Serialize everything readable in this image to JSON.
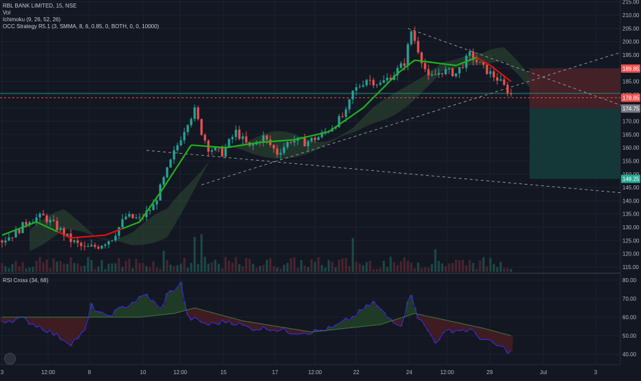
{
  "header": {
    "symbol": "RBL BANK LIMITED, 15, NSE",
    "indicators": [
      "Vol",
      "Ichimoku (9, 26, 52, 26)",
      "OCC Strategy R5.1 (3, SMMA, 8, 6, 0.85, 0, BOTH, 0, 0, 10000)"
    ]
  },
  "price_axis": {
    "ticks": [
      "215.00",
      "210.00",
      "205.00",
      "200.00",
      "195.00",
      "190.00",
      "185.00",
      "180.00",
      "175.00",
      "170.00",
      "165.00",
      "160.00",
      "155.00",
      "150.00",
      "145.00",
      "140.00",
      "135.00",
      "130.00",
      "125.00",
      "120.00",
      "115.00"
    ],
    "markers": [
      {
        "label": "189.85",
        "value": 189.85,
        "color": "#ef5350"
      },
      {
        "label": "178.85",
        "value": 178.85,
        "color": "#ef5350"
      },
      {
        "label": "174.75",
        "value": 174.75,
        "color": "#787b86"
      },
      {
        "label": "148.25",
        "value": 148.25,
        "color": "#22ab94"
      }
    ]
  },
  "time_axis": {
    "labels": [
      "3",
      "12:00",
      "8",
      "10",
      "12:00",
      "15",
      "17",
      "12:00",
      "22",
      "24",
      "12:00",
      "29",
      "Jul",
      "3"
    ]
  },
  "rsi": {
    "title": "RSI Cross (34, 68)",
    "ticks": [
      "80.00",
      "70.00",
      "60.00",
      "50.00",
      "40.00"
    ]
  },
  "colors": {
    "background": "#131722",
    "up_candle": "#26a69a",
    "down_candle": "#ef5350",
    "occ_up": "#1fb31f",
    "occ_down": "#e01010",
    "cloud": "#2e4a33",
    "trendline": "#9598a1",
    "position_loss": "#4a2128",
    "position_profit": "#143a3a",
    "rsi_purple": "#3b2bd9",
    "rsi_bull": "#1f3b26",
    "rsi_bear": "#3f1c22"
  },
  "chart_data": [
    {
      "type": "candlestick",
      "title": "RBL BANK LIMITED, 15, NSE",
      "x": [
        "3",
        "12:00",
        "8",
        "10",
        "12:00",
        "15",
        "17",
        "12:00",
        "22",
        "24",
        "12:00",
        "29"
      ],
      "ylim": [
        112,
        217
      ],
      "close_path": [
        [
          0,
          125
        ],
        [
          4,
          128
        ],
        [
          8,
          133
        ],
        [
          12,
          134
        ],
        [
          16,
          130
        ],
        [
          20,
          125
        ],
        [
          24,
          122
        ],
        [
          28,
          123
        ],
        [
          32,
          126
        ],
        [
          36,
          134
        ],
        [
          40,
          133
        ],
        [
          44,
          138
        ],
        [
          47,
          148
        ],
        [
          50,
          158
        ],
        [
          54,
          170
        ],
        [
          56,
          174
        ],
        [
          58,
          166
        ],
        [
          60,
          160
        ],
        [
          64,
          158
        ],
        [
          68,
          166
        ],
        [
          72,
          160
        ],
        [
          76,
          164
        ],
        [
          80,
          158
        ],
        [
          84,
          163
        ],
        [
          88,
          162
        ],
        [
          92,
          164
        ],
        [
          96,
          168
        ],
        [
          100,
          173
        ],
        [
          102,
          181
        ],
        [
          106,
          186
        ],
        [
          110,
          184
        ],
        [
          114,
          188
        ],
        [
          117,
          192
        ],
        [
          119,
          204
        ],
        [
          121,
          197
        ],
        [
          124,
          186
        ],
        [
          128,
          189
        ],
        [
          132,
          188
        ],
        [
          136,
          195
        ],
        [
          140,
          190
        ],
        [
          144,
          186
        ],
        [
          146,
          183
        ],
        [
          148,
          180
        ]
      ],
      "occ_path": [
        [
          0,
          127
        ],
        [
          10,
          132
        ],
        [
          20,
          126
        ],
        [
          30,
          127
        ],
        [
          40,
          132
        ],
        [
          47,
          145
        ],
        [
          55,
          161
        ],
        [
          65,
          160
        ],
        [
          75,
          162
        ],
        [
          85,
          163
        ],
        [
          95,
          166
        ],
        [
          105,
          175
        ],
        [
          115,
          188
        ],
        [
          120,
          193
        ],
        [
          126,
          192
        ],
        [
          132,
          191
        ],
        [
          138,
          194
        ],
        [
          142,
          191
        ],
        [
          148,
          185
        ]
      ],
      "trendlines": [
        {
          "from": [
            42,
            159
          ],
          "to": [
            180,
            143
          ]
        },
        {
          "from": [
            58,
            146
          ],
          "to": [
            180,
            196
          ]
        },
        {
          "from": [
            118,
            205
          ],
          "to": [
            180,
            176
          ]
        }
      ],
      "position": {
        "entry": 174.75,
        "stop": 189.85,
        "target": 148.25,
        "current": 178.85
      }
    },
    {
      "type": "line",
      "title": "RSI Cross (34, 68)",
      "ylim": [
        35,
        82
      ],
      "rsi_path": [
        [
          0,
          58
        ],
        [
          6,
          59
        ],
        [
          12,
          54
        ],
        [
          16,
          50
        ],
        [
          20,
          46
        ],
        [
          24,
          52
        ],
        [
          26,
          66
        ],
        [
          30,
          60
        ],
        [
          34,
          64
        ],
        [
          38,
          68
        ],
        [
          42,
          72
        ],
        [
          46,
          64
        ],
        [
          48,
          72
        ],
        [
          52,
          78
        ],
        [
          54,
          60
        ],
        [
          60,
          56
        ],
        [
          66,
          58
        ],
        [
          72,
          54
        ],
        [
          78,
          54
        ],
        [
          84,
          52
        ],
        [
          90,
          52
        ],
        [
          96,
          54
        ],
        [
          102,
          60
        ],
        [
          108,
          68
        ],
        [
          112,
          60
        ],
        [
          116,
          56
        ],
        [
          119,
          73
        ],
        [
          121,
          60
        ],
        [
          126,
          47
        ],
        [
          130,
          53
        ],
        [
          136,
          53
        ],
        [
          140,
          48
        ],
        [
          146,
          43
        ],
        [
          148,
          41
        ]
      ],
      "ma_path": [
        [
          0,
          60
        ],
        [
          20,
          60
        ],
        [
          40,
          60
        ],
        [
          50,
          62
        ],
        [
          56,
          65
        ],
        [
          70,
          58
        ],
        [
          90,
          52
        ],
        [
          110,
          56
        ],
        [
          120,
          62
        ],
        [
          130,
          58
        ],
        [
          140,
          54
        ],
        [
          148,
          50
        ]
      ]
    }
  ]
}
